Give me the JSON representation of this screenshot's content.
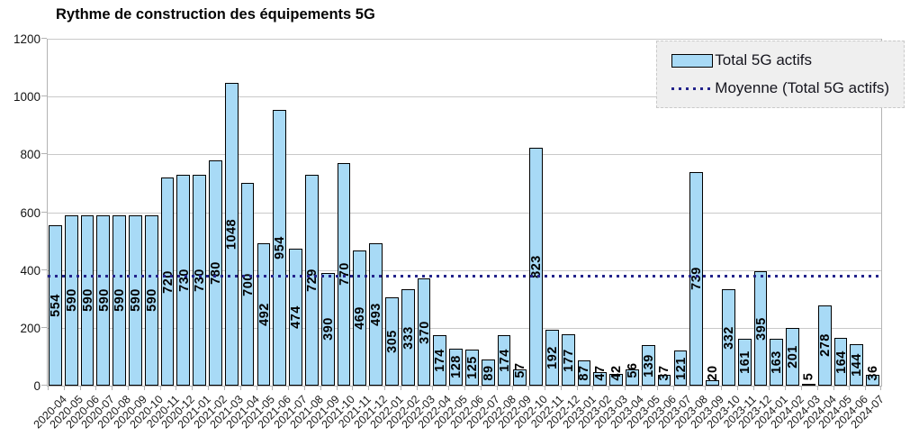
{
  "title": "Rythme de construction des équipements 5G",
  "legend": {
    "items": [
      {
        "label": "Total 5G actifs",
        "swatch": "bar"
      },
      {
        "label": "Moyenne (Total 5G actifs)",
        "swatch": "dotted-line"
      }
    ]
  },
  "colors": {
    "bar_fill": "#a8daf6",
    "bar_border": "#000000",
    "mean_line": "#23238b",
    "grid": "#c9c9c9",
    "legend_bg": "#efefef"
  },
  "chart_data": {
    "type": "bar",
    "title": "Rythme de construction des équipements 5G",
    "categories": [
      "2020-04",
      "2020-05",
      "2020-06",
      "2020-07",
      "2020-08",
      "2020-09",
      "2020-10",
      "2020-11",
      "2020-12",
      "2021-01",
      "2021-02",
      "2021-03",
      "2021-04",
      "2021-05",
      "2021-06",
      "2021-07",
      "2021-08",
      "2021-09",
      "2021-10",
      "2021-11",
      "2021-12",
      "2022-01",
      "2022-02",
      "2022-03",
      "2022-04",
      "2022-05",
      "2022-06",
      "2022-07",
      "2022-08",
      "2022-09",
      "2022-10",
      "2022-11",
      "2022-12",
      "2023-01",
      "2023-02",
      "2023-03",
      "2023-04",
      "2023-05",
      "2023-06",
      "2023-07",
      "2023-08",
      "2023-09",
      "2023-10",
      "2023-11",
      "2023-12",
      "2024-01",
      "2024-02",
      "2024-03",
      "2024-04",
      "2024-05",
      "2024-06",
      "2024-07"
    ],
    "series": [
      {
        "name": "Total 5G actifs",
        "values": [
          554,
          590,
          590,
          590,
          590,
          590,
          590,
          720,
          730,
          730,
          780,
          1048,
          700,
          492,
          954,
          474,
          729,
          390,
          770,
          469,
          493,
          305,
          333,
          370,
          174,
          128,
          125,
          89,
          174,
          57,
          823,
          192,
          177,
          87,
          47,
          42,
          56,
          139,
          37,
          121,
          739,
          20,
          332,
          161,
          395,
          163,
          201,
          5,
          278,
          164,
          144,
          36
        ]
      }
    ],
    "average_line": {
      "name": "Moyenne (Total 5G actifs)",
      "value": 378.6,
      "style": "dotted"
    },
    "ylim": [
      0,
      1200
    ],
    "yticks": [
      0,
      200,
      400,
      600,
      800,
      1000,
      1200
    ],
    "grid": true,
    "legend_position": "top-right",
    "value_labels": "rotated-90-in-bars",
    "x_tick_rotation": -45
  }
}
